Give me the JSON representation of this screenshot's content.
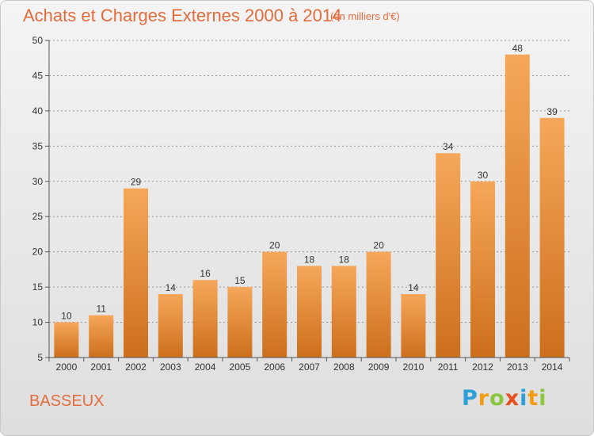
{
  "header": {
    "title": "Achats et Charges Externes 2000 à 2014",
    "subtitle": "(en milliers d'€)"
  },
  "footer": {
    "commune": "BASSEUX",
    "brand_letters": [
      "P",
      "r",
      "o",
      "x",
      "i",
      "t",
      "i"
    ],
    "brand_colors": [
      "#2f9fd8",
      "#f39c12",
      "#8cc63f",
      "#e94e1b",
      "#2f9fd8",
      "#f39c12",
      "#8cc63f"
    ]
  },
  "colors": {
    "bar_top": "#f6a75a",
    "bar_bottom": "#cc6f1c",
    "axis": "#555555",
    "grid": "#999999",
    "accent": "#e36c3d"
  },
  "chart_data": {
    "type": "bar",
    "categories": [
      "2000",
      "2001",
      "2002",
      "2003",
      "2004",
      "2005",
      "2006",
      "2007",
      "2008",
      "2009",
      "2010",
      "2011",
      "2012",
      "2013",
      "2014"
    ],
    "values": [
      10,
      11,
      29,
      14,
      16,
      15,
      20,
      18,
      18,
      20,
      14,
      34,
      30,
      48,
      39
    ],
    "title": "Achats et Charges Externes 2000 à 2014",
    "subtitle": "(en milliers d'€)",
    "xlabel": "",
    "ylabel": "",
    "ylim": [
      5,
      50
    ],
    "yticks": [
      5,
      10,
      15,
      20,
      25,
      30,
      35,
      40,
      45,
      50
    ],
    "grid": "horizontal dashed",
    "data_labels": true
  }
}
